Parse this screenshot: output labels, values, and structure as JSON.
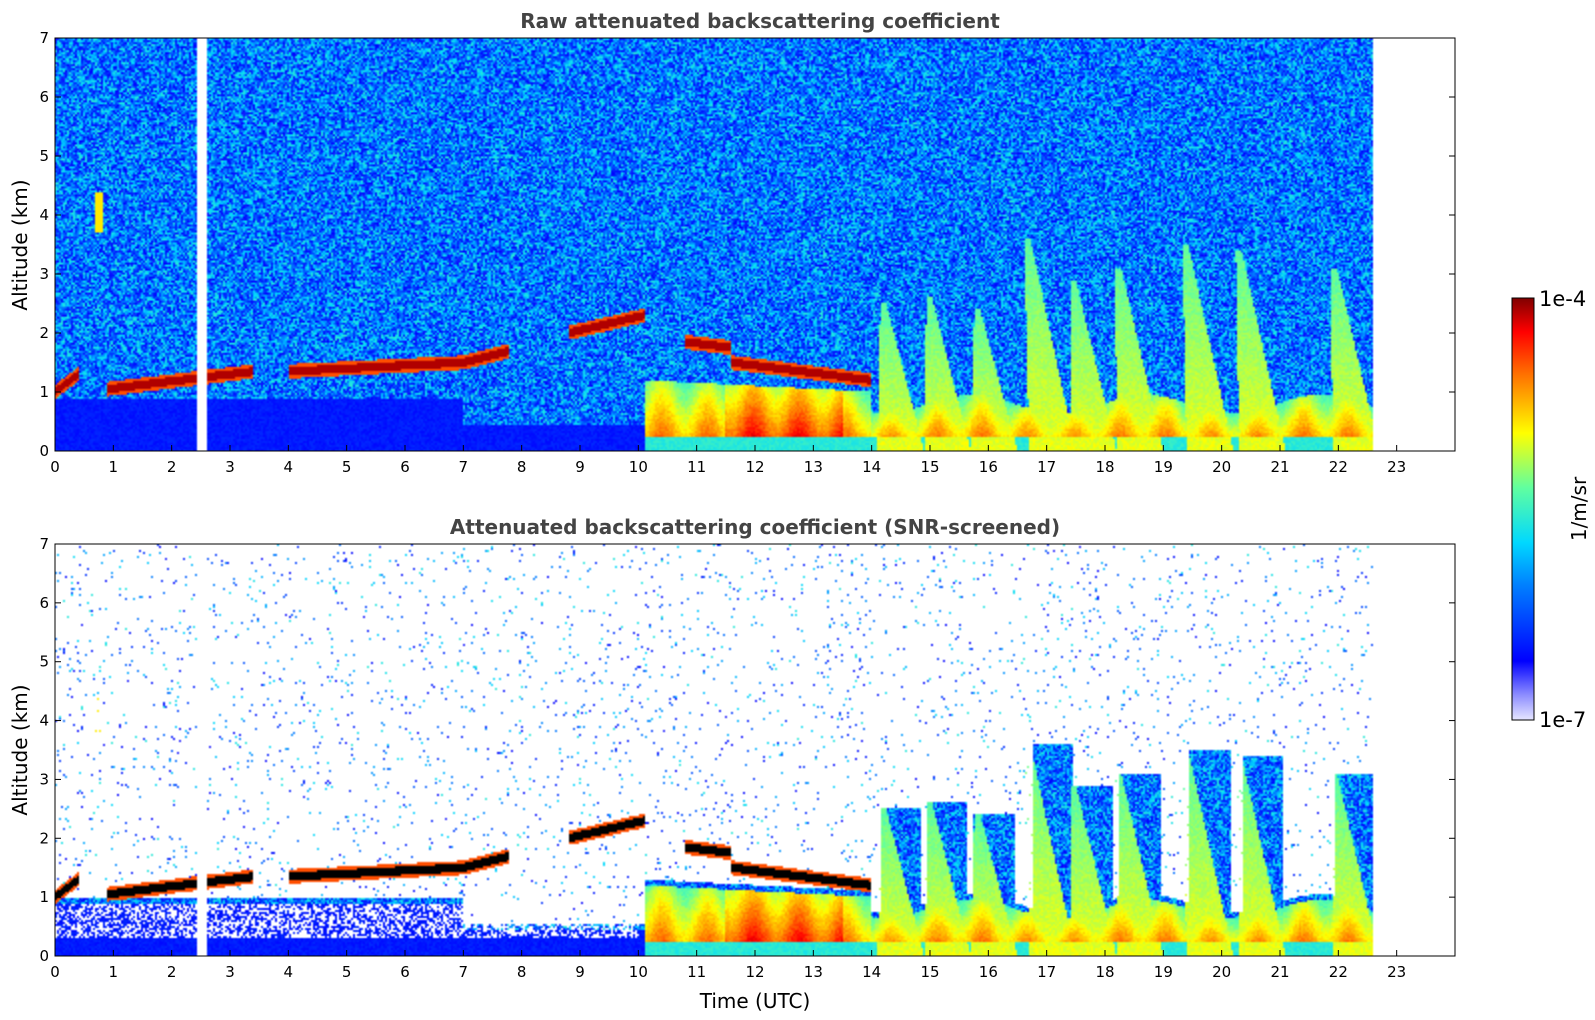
{
  "chart_data": [
    {
      "type": "heatmap",
      "title": "Raw attenuated backscattering coefficient",
      "xlabel": "",
      "ylabel": "Altitude (km)",
      "xlim": [
        0,
        24
      ],
      "ylim": [
        0,
        7
      ],
      "xticks": [
        "0",
        "1",
        "2",
        "3",
        "4",
        "5",
        "6",
        "7",
        "8",
        "9",
        "10",
        "11",
        "12",
        "13",
        "14",
        "15",
        "16",
        "17",
        "18",
        "19",
        "20",
        "21",
        "22",
        "23"
      ],
      "yticks": [
        "0",
        "1",
        "2",
        "3",
        "4",
        "5",
        "6",
        "7"
      ],
      "data_end_time": 22.6,
      "screened": false,
      "cloud_layer_km": [
        {
          "t": [
            0.0,
            0.4
          ],
          "alt": [
            1.0,
            1.3
          ]
        },
        {
          "t": [
            0.9,
            3.4
          ],
          "alt": [
            1.05,
            1.35
          ]
        },
        {
          "t": [
            4.0,
            7.0
          ],
          "alt": [
            1.35,
            1.5
          ]
        },
        {
          "t": [
            7.0,
            7.8
          ],
          "alt": [
            1.5,
            1.7
          ]
        },
        {
          "t": [
            8.8,
            10.1
          ],
          "alt": [
            2.0,
            2.3
          ]
        },
        {
          "t": [
            10.8,
            11.6
          ],
          "alt": [
            1.85,
            1.75
          ]
        },
        {
          "t": [
            11.6,
            14.0
          ],
          "alt": [
            1.5,
            1.2
          ]
        }
      ],
      "boundary_layer_km": [
        {
          "t": [
            10.1,
            14.0
          ],
          "top": 1.2
        },
        {
          "t": [
            14.0,
            22.6
          ],
          "top": 0.8
        }
      ],
      "plumes": [
        {
          "t": 14.5,
          "top": 2.5
        },
        {
          "t": 15.3,
          "top": 2.6
        },
        {
          "t": 16.1,
          "top": 2.4
        },
        {
          "t": 17.1,
          "top": 3.6
        },
        {
          "t": 17.8,
          "top": 2.9
        },
        {
          "t": 18.6,
          "top": 3.1
        },
        {
          "t": 19.8,
          "top": 3.5
        },
        {
          "t": 20.7,
          "top": 3.4
        },
        {
          "t": 22.3,
          "top": 3.1
        }
      ],
      "isolated_cloud": {
        "t": 0.75,
        "alt": [
          3.7,
          4.4
        ]
      }
    },
    {
      "type": "heatmap",
      "title": "Attenuated backscattering coefficient (SNR-screened)",
      "xlabel": "Time (UTC)",
      "ylabel": "Altitude (km)",
      "xlim": [
        0,
        24
      ],
      "ylim": [
        0,
        7
      ],
      "xticks": [
        "0",
        "1",
        "2",
        "3",
        "4",
        "5",
        "6",
        "7",
        "8",
        "9",
        "10",
        "11",
        "12",
        "13",
        "14",
        "15",
        "16",
        "17",
        "18",
        "19",
        "20",
        "21",
        "22",
        "23"
      ],
      "yticks": [
        "0",
        "1",
        "2",
        "3",
        "4",
        "5",
        "6",
        "7"
      ],
      "data_end_time": 22.6,
      "screened": true
    }
  ],
  "colorbar": {
    "label": "1/m/sr",
    "max_label": "1e-4",
    "min_label": "1e-7",
    "range": [
      1e-07,
      0.0001
    ],
    "scale": "log",
    "colormap": "jet"
  }
}
